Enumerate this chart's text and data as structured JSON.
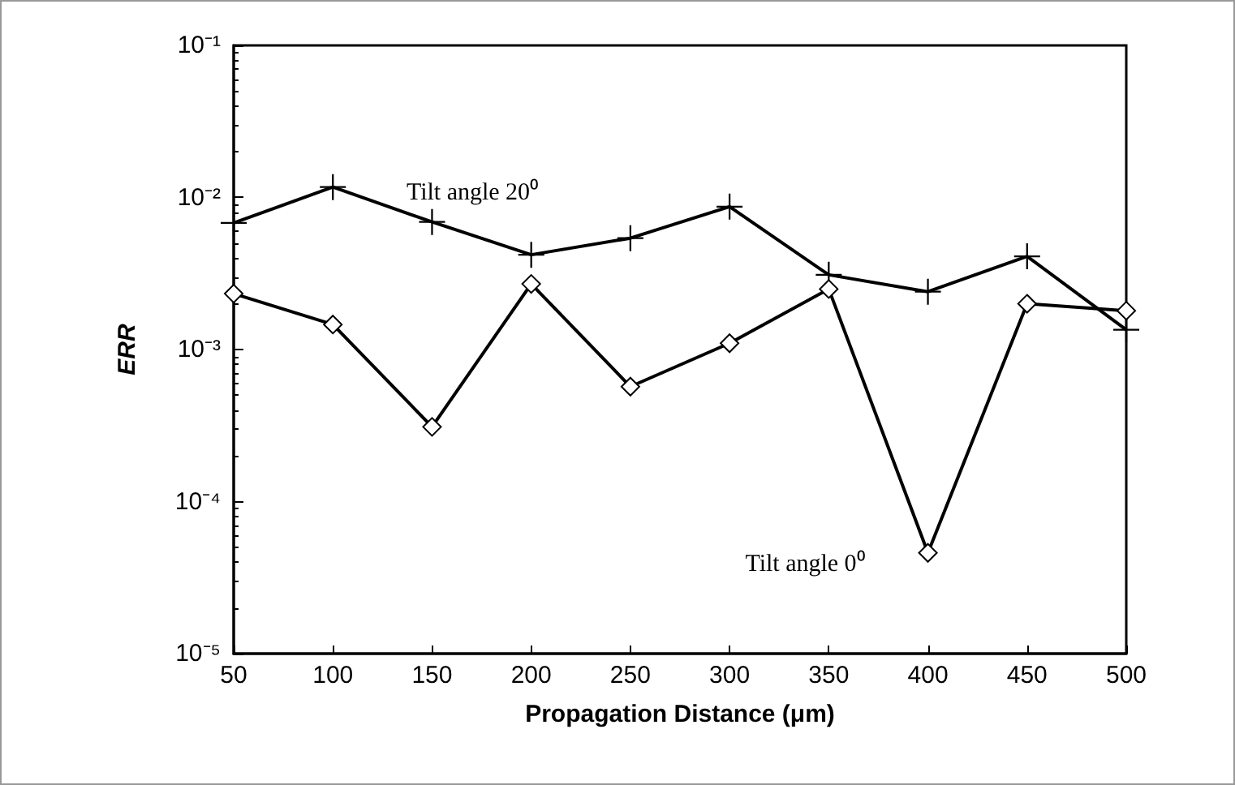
{
  "chart_data": {
    "type": "line",
    "xlabel": "Propagation Distance (μm)",
    "ylabel": "ERR",
    "x": [
      50,
      100,
      150,
      200,
      250,
      300,
      350,
      400,
      450,
      500
    ],
    "series": [
      {
        "color": "#000000",
        "marker": "cross",
        "values": [
          0.0068,
          0.0117,
          0.0069,
          0.0042,
          0.0054,
          0.0087,
          0.0031,
          0.0024,
          0.0041,
          0.00135
        ]
      },
      {
        "color": "#000000",
        "marker": "diamond",
        "values": [
          0.00233,
          0.00146,
          0.00031,
          0.0027,
          0.00057,
          0.0011,
          0.0025,
          4.6e-05,
          0.002,
          0.0018
        ]
      }
    ],
    "log": "y",
    "xlim": [
      50,
      500
    ],
    "ylim": [
      1e-05,
      0.1
    ],
    "xticks": [
      50,
      100,
      150,
      200,
      250,
      300,
      350,
      400,
      450,
      500
    ],
    "yticks": [
      {
        "value": 1e-05,
        "label": "10⁻⁵"
      },
      {
        "value": 0.0001,
        "label": "10⁻⁴"
      },
      {
        "value": 0.001,
        "label": "10⁻³"
      },
      {
        "value": 0.01,
        "label": "10⁻²"
      },
      {
        "value": 0.1,
        "label": "10⁻¹"
      }
    ],
    "grid": false,
    "line_style": "solid",
    "annotations": [
      "Tilt angle 20⁰",
      "Tilt angle 0⁰"
    ]
  }
}
